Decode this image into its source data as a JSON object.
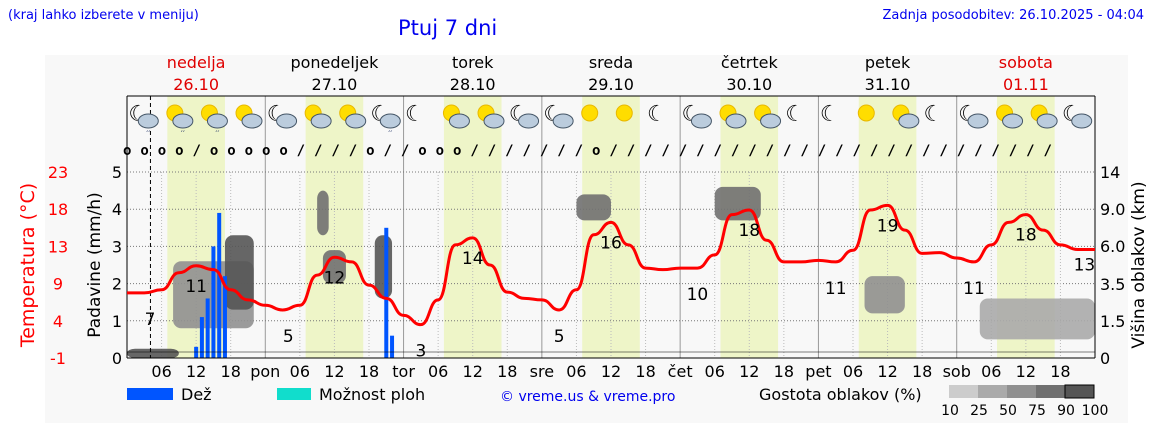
{
  "header": {
    "left_note": "(kraj lahko izberete v meniju)",
    "title": "Ptuj 7 dni",
    "updated": "Zadnja posodobitev: 26.10.2025 - 04:04"
  },
  "days": [
    {
      "name": "nedelja",
      "date": "26.10",
      "weekend": true
    },
    {
      "name": "ponedeljek",
      "date": "27.10",
      "weekend": false
    },
    {
      "name": "torek",
      "date": "28.10",
      "weekend": false
    },
    {
      "name": "sreda",
      "date": "29.10",
      "weekend": false
    },
    {
      "name": "četrtek",
      "date": "30.10",
      "weekend": false
    },
    {
      "name": "petek",
      "date": "31.10",
      "weekend": false
    },
    {
      "name": "sobota",
      "date": "01.11",
      "weekend": true
    }
  ],
  "icons": [
    "moon-rain",
    "sun-rain",
    "sun-rain",
    "sun-cloud",
    "moon-cloud",
    "sun-cloud",
    "sun-cloud",
    "moon-rain",
    "moon",
    "sun-cloud",
    "sun-cloud",
    "moon-cloud",
    "moon-cloud",
    "sun",
    "sun",
    "moon",
    "moon-cloud",
    "sun-cloud",
    "sun-cloud",
    "moon",
    "moon",
    "sun",
    "sun-cloud",
    "moon",
    "moon-cloud",
    "sun-cloud",
    "sun-cloud",
    "moon-cloud"
  ],
  "wind": "oooo/ooooo////o//ooo///////o//////////////////////////",
  "chart_data": {
    "type": "line",
    "title": "Ptuj 7 dni",
    "x_ticks": [
      "06",
      "12",
      "18",
      "pon",
      "06",
      "12",
      "18",
      "tor",
      "06",
      "12",
      "18",
      "sre",
      "06",
      "12",
      "18",
      "čet",
      "06",
      "12",
      "18",
      "pet",
      "06",
      "12",
      "18",
      "sob",
      "06",
      "12",
      "18"
    ],
    "temp_axis": {
      "label": "Temperatura (°C)",
      "ticks": [
        "23",
        "18",
        "13",
        "9",
        "4",
        "-1"
      ],
      "range": [
        -1,
        23
      ]
    },
    "precip_axis": {
      "label": "Padavine (mm/h)",
      "ticks": [
        "5",
        "4",
        "3",
        "2",
        "1",
        "0"
      ],
      "range": [
        0,
        5
      ]
    },
    "cloud_axis": {
      "label": "Višina oblakov (km)",
      "ticks": [
        "14",
        "9.0",
        "6.0",
        "3.5",
        "1.5",
        "0"
      ]
    },
    "now_hour": 4.07,
    "temperature": {
      "step_hours": 3,
      "values": [
        7.4,
        7.4,
        7.8,
        10,
        10.9,
        10.4,
        7.8,
        6.5,
        5.8,
        5.2,
        5.8,
        9.7,
        12,
        11.4,
        8.4,
        6.7,
        4.5,
        3.3,
        6.5,
        13.6,
        14.5,
        11,
        7.5,
        6.7,
        6.5,
        5.2,
        7.8,
        14.9,
        16.5,
        13.6,
        10.6,
        10.4,
        10.6,
        10.6,
        12.3,
        17.5,
        18.1,
        14.2,
        11.4,
        11.4,
        11.6,
        11.4,
        12.9,
        18.1,
        18.7,
        15.5,
        12.5,
        12.6,
        11.9,
        11.4,
        13.6,
        16.5,
        17.5,
        15.5,
        13.6,
        13,
        13
      ]
    },
    "temp_labels": [
      {
        "h": 4,
        "v": "7"
      },
      {
        "h": 12,
        "v": "11"
      },
      {
        "h": 28,
        "v": "5"
      },
      {
        "h": 36,
        "v": "12"
      },
      {
        "h": 51,
        "v": "3"
      },
      {
        "h": 60,
        "v": "14"
      },
      {
        "h": 75,
        "v": "5"
      },
      {
        "h": 84,
        "v": "16"
      },
      {
        "h": 99,
        "v": "10"
      },
      {
        "h": 108,
        "v": "18"
      },
      {
        "h": 123,
        "v": "11"
      },
      {
        "h": 132,
        "v": "19"
      },
      {
        "h": 147,
        "v": "11"
      },
      {
        "h": 156,
        "v": "18"
      },
      {
        "h": 167,
        "v": "13"
      }
    ],
    "rain": [
      {
        "h": 12,
        "v": 0.3
      },
      {
        "h": 13,
        "v": 1.1
      },
      {
        "h": 14,
        "v": 1.6
      },
      {
        "h": 15,
        "v": 3.0
      },
      {
        "h": 16,
        "v": 3.9
      },
      {
        "h": 17,
        "v": 2.2
      },
      {
        "h": 45,
        "v": 3.5
      },
      {
        "h": 46,
        "v": 0.6
      }
    ],
    "clouds": [
      {
        "h0": 0,
        "h1": 9,
        "y0": 0,
        "y1": 0.25,
        "d": 90
      },
      {
        "h0": 8,
        "h1": 22,
        "y0": 0.8,
        "y1": 2.6,
        "d": 50
      },
      {
        "h0": 17,
        "h1": 22,
        "y0": 1.3,
        "y1": 3.3,
        "d": 90
      },
      {
        "h0": 34,
        "h1": 38,
        "y0": 2,
        "y1": 2.9,
        "d": 75
      },
      {
        "h0": 43,
        "h1": 46,
        "y0": 1.6,
        "y1": 3.3,
        "d": 90
      },
      {
        "h0": 33,
        "h1": 35,
        "y0": 3.3,
        "y1": 4.5,
        "d": 75
      },
      {
        "h0": 78,
        "h1": 84,
        "y0": 3.7,
        "y1": 4.4,
        "d": 75
      },
      {
        "h0": 102,
        "h1": 110,
        "y0": 3.7,
        "y1": 4.6,
        "d": 75
      },
      {
        "h0": 128,
        "h1": 135,
        "y0": 1.2,
        "y1": 2.2,
        "d": 50
      },
      {
        "h0": 148,
        "h1": 168,
        "y0": 0.5,
        "y1": 1.6,
        "d": 25
      }
    ],
    "legend": {
      "rain": "Dež",
      "showers": "Možnost ploh",
      "credit": "© vreme.us & vreme.pro",
      "density_label": "Gostota oblakov (%)",
      "density_ticks": [
        "10",
        "25",
        "50",
        "75",
        "90",
        "100"
      ]
    },
    "colors": {
      "temp": "#ff0000",
      "rain": "#0055ff",
      "showers": "#11ddcc",
      "day": "#eef5c8"
    }
  }
}
